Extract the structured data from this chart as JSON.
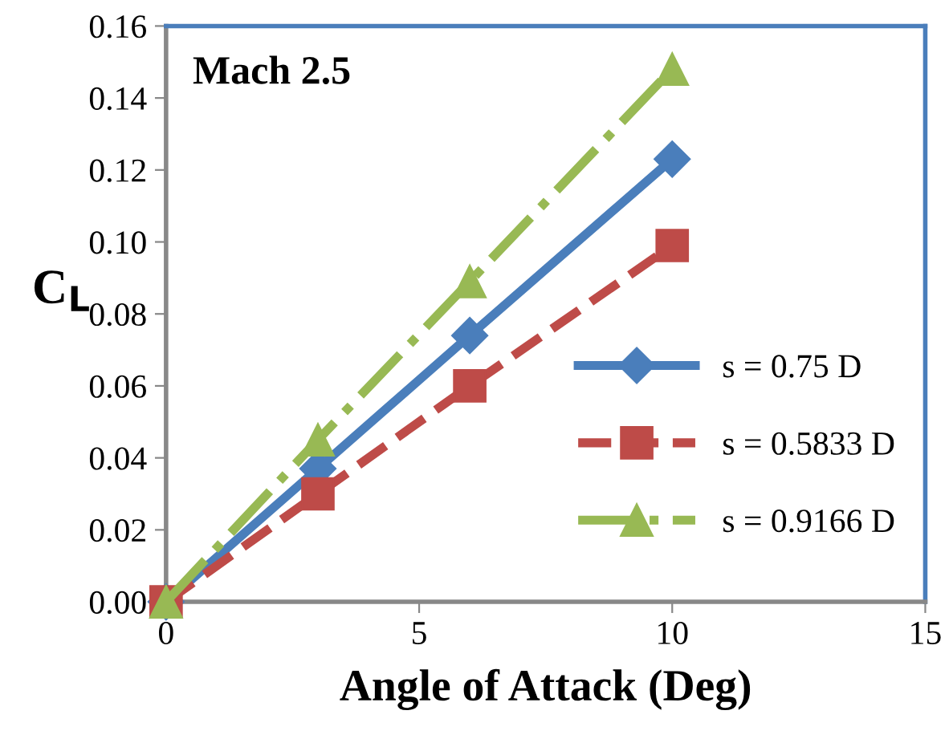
{
  "chart_data": {
    "type": "line",
    "xlabel": "Angle of Attack (Deg)",
    "ylabel": "C$_{L}$",
    "annotations": [
      "Mach 2.5"
    ],
    "x": [
      0,
      3,
      6,
      10
    ],
    "series": [
      {
        "name": "s = 0.75 D",
        "color": "#4a7ebb",
        "values": [
          0,
          0.037,
          0.074,
          0.123
        ],
        "marker": "diamond",
        "line_style": "solid"
      },
      {
        "name": "s = 0.5833 D",
        "color": "#be4b48",
        "values": [
          0,
          0.03,
          0.06,
          0.099
        ],
        "marker": "square",
        "line_style": "dashed"
      },
      {
        "name": "s = 0.9166 D",
        "color": "#98b954",
        "values": [
          0,
          0.045,
          0.089,
          0.148
        ],
        "marker": "triangle",
        "line_style": "dashdot"
      }
    ],
    "xlim": [
      0,
      15
    ],
    "xticks": [
      0,
      5,
      10,
      15
    ],
    "ylim": [
      0,
      0.16
    ],
    "yticks": [
      {
        "value": 0,
        "label": "0.00"
      },
      {
        "value": 0.02,
        "label": "0.02"
      },
      {
        "value": 0.04,
        "label": "0.04"
      },
      {
        "value": 0.06,
        "label": "0.06"
      },
      {
        "value": 0.08,
        "label": "0.08"
      },
      {
        "value": 0.1,
        "label": "0.10"
      },
      {
        "value": 0.12,
        "label": "0.12"
      },
      {
        "value": 0.14,
        "label": "0.14"
      },
      {
        "value": 0.16,
        "label": "0.16"
      }
    ],
    "grid": false,
    "legend": "right"
  }
}
